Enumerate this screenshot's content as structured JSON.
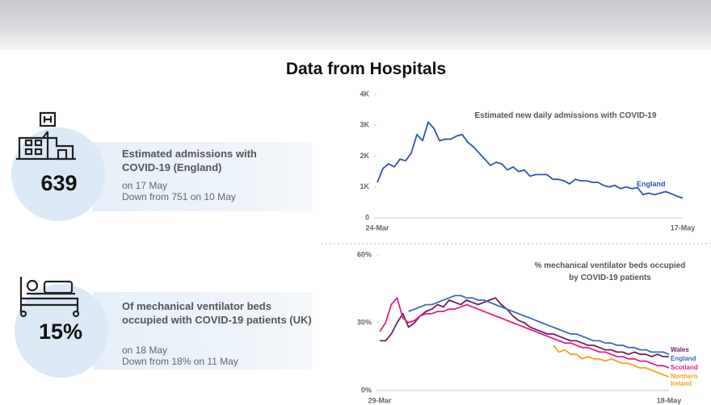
{
  "title": "Data from Hospitals",
  "stats": [
    {
      "value": "639",
      "heading": "Estimated admissions with COVID-19 (England)",
      "date": "on 17 May",
      "note": "Down from 751 on 10 May"
    },
    {
      "value": "15%",
      "heading": "Of mechanical ventilator beds occupied with COVID-19 patients (UK)",
      "date": "on 18 May",
      "note": "Down from 18% on 11 May"
    }
  ],
  "chart_data": [
    {
      "type": "line",
      "title": "Estimated new daily admissions with COVID-19",
      "categories": [
        "24-Mar",
        null,
        null,
        null,
        null,
        null,
        null,
        null,
        null,
        null,
        null,
        null,
        null,
        null,
        null,
        null,
        null,
        null,
        null,
        null,
        null,
        null,
        null,
        null,
        null,
        null,
        null,
        null,
        null,
        null,
        null,
        null,
        null,
        null,
        null,
        null,
        null,
        null,
        null,
        null,
        null,
        null,
        null,
        null,
        null,
        null,
        null,
        null,
        null,
        null,
        null,
        null,
        null,
        null,
        "17-May"
      ],
      "series": [
        {
          "name": "England",
          "color": "#2f55a8",
          "values": [
            1150,
            1600,
            1750,
            1650,
            1900,
            1850,
            2100,
            2700,
            2500,
            3100,
            2900,
            2500,
            2550,
            2550,
            2650,
            2700,
            2450,
            2300,
            2100,
            1900,
            1700,
            1800,
            1750,
            1550,
            1650,
            1500,
            1550,
            1350,
            1400,
            1400,
            1400,
            1250,
            1250,
            1200,
            1100,
            1250,
            1200,
            1200,
            1150,
            1150,
            1050,
            1000,
            1050,
            950,
            1000,
            950,
            980,
            750,
            800,
            750,
            800,
            850,
            780,
            700,
            639
          ]
        }
      ],
      "ylim": [
        0,
        4000
      ],
      "yticks": [
        0,
        {
          "value": 1000,
          "label": "1K"
        },
        {
          "value": 2000,
          "label": "2K"
        },
        {
          "value": 3000,
          "label": "3K"
        },
        {
          "value": 4000,
          "label": "4K"
        }
      ]
    },
    {
      "type": "line",
      "title": "% mechanical ventilator beds occupied by COVID-19 patients",
      "categories": [
        "29-Mar",
        null,
        null,
        null,
        null,
        null,
        null,
        null,
        null,
        null,
        null,
        null,
        null,
        null,
        null,
        null,
        null,
        null,
        null,
        null,
        null,
        null,
        null,
        null,
        null,
        null,
        null,
        null,
        null,
        null,
        null,
        null,
        null,
        null,
        null,
        null,
        null,
        null,
        null,
        null,
        null,
        null,
        null,
        null,
        null,
        null,
        null,
        null,
        null,
        null,
        "18-May"
      ],
      "series": [
        {
          "name": "Wales",
          "color": "#6e1f63",
          "values": [
            22,
            22,
            25,
            30,
            34,
            28,
            30,
            33,
            35,
            36,
            38,
            37,
            40,
            39,
            38,
            40,
            39,
            38,
            39,
            40,
            41,
            38,
            36,
            33,
            31,
            30,
            28,
            27,
            26,
            25,
            25,
            24,
            23,
            22,
            22,
            21,
            20,
            20,
            19,
            18,
            18,
            17,
            17,
            16,
            17,
            16,
            16,
            15,
            16,
            15,
            15
          ]
        },
        {
          "name": "England",
          "color": "#3a6cb8",
          "values": [
            null,
            null,
            null,
            null,
            null,
            35,
            36,
            37,
            38,
            38,
            39,
            40,
            41,
            42,
            42,
            41,
            41,
            40,
            40,
            39,
            38,
            37,
            36,
            35,
            34,
            33,
            32,
            31,
            30,
            29,
            28,
            27,
            26,
            25,
            25,
            24,
            23,
            22,
            22,
            21,
            21,
            20,
            20,
            19,
            19,
            18,
            18,
            17,
            17,
            17,
            16
          ]
        },
        {
          "name": "Scotland",
          "color": "#e0208a",
          "values": [
            26,
            30,
            38,
            41,
            32,
            30,
            31,
            33,
            34,
            34,
            35,
            35,
            36,
            36,
            37,
            38,
            37,
            36,
            35,
            34,
            33,
            32,
            31,
            30,
            29,
            28,
            27,
            26,
            25,
            24,
            23,
            22,
            21,
            21,
            20,
            19,
            19,
            18,
            17,
            17,
            16,
            15,
            15,
            14,
            14,
            13,
            13,
            12,
            11,
            11,
            10
          ]
        },
        {
          "name": "Northern Ireland",
          "color": "#f2a31c",
          "values": [
            null,
            null,
            null,
            null,
            null,
            null,
            null,
            null,
            null,
            null,
            null,
            null,
            null,
            null,
            null,
            null,
            null,
            null,
            null,
            null,
            null,
            null,
            null,
            null,
            null,
            null,
            null,
            null,
            null,
            null,
            20,
            17,
            18,
            16,
            16,
            14,
            15,
            14,
            14,
            13,
            14,
            13,
            12,
            12,
            11,
            10,
            10,
            9,
            8,
            7,
            6
          ]
        }
      ],
      "ylim": [
        0,
        60
      ],
      "yticks": [
        {
          "value": 0,
          "label": "0%"
        },
        {
          "value": 30,
          "label": "30%"
        },
        {
          "value": 60,
          "label": "60%"
        }
      ]
    }
  ]
}
